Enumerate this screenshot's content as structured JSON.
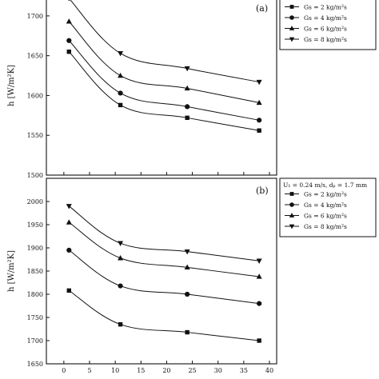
{
  "chart_data": [
    {
      "type": "scatter",
      "panel_label": "(a)",
      "ylabel": "h [W/m²K]",
      "xlim": [
        -2,
        40
      ],
      "ylim": [
        1500,
        1725
      ],
      "yticks": [
        1500,
        1550,
        1600,
        1650,
        1700
      ],
      "legend": {
        "position": "top-right",
        "entries_visible": [
          "Gs = 2 kg/m²s",
          "Gs = 4 kg/m²s",
          "Gs = 6 kg/m²s",
          "Gs = 8 kg/m²s"
        ]
      },
      "series": [
        {
          "name": "Gs = 2 kg/m²s",
          "marker": "square",
          "x": [
            1,
            11,
            24,
            38
          ],
          "y": [
            1655,
            1588,
            1572,
            1556
          ]
        },
        {
          "name": "Gs = 4 kg/m²s",
          "marker": "circle",
          "x": [
            1,
            11,
            24,
            38
          ],
          "y": [
            1669,
            1603,
            1586,
            1569
          ]
        },
        {
          "name": "Gs = 6 kg/m²s",
          "marker": "triangle-up",
          "x": [
            1,
            11,
            24,
            38
          ],
          "y": [
            1693,
            1625,
            1609,
            1591
          ]
        },
        {
          "name": "Gs = 8 kg/m²s",
          "marker": "triangle-down",
          "x": [
            1,
            11,
            24,
            38
          ],
          "y": [
            1722,
            1653,
            1634,
            1617
          ]
        }
      ]
    },
    {
      "type": "scatter",
      "panel_label": "(b)",
      "ylabel": "h [W/m²K]",
      "annotation": "U₁ = 0.24 m/s, dₚ = 1.7 mm",
      "xlim": [
        -2,
        40
      ],
      "xticks": [
        0,
        5,
        10,
        15,
        20,
        25,
        30,
        35,
        40
      ],
      "ylim": [
        1650,
        2050
      ],
      "yticks": [
        1650,
        1700,
        1750,
        1800,
        1850,
        1900,
        1950,
        2000
      ],
      "legend": {
        "position": "top-right",
        "entries_visible": [
          "Gs = 2 kg/m²s",
          "Gs = 4 kg/m²s",
          "Gs = 6 kg/m²s",
          "Gs = 8 kg/m²s"
        ]
      },
      "series": [
        {
          "name": "Gs = 2 kg/m²s",
          "marker": "square",
          "x": [
            1,
            11,
            24,
            38
          ],
          "y": [
            1808,
            1735,
            1718,
            1700
          ]
        },
        {
          "name": "Gs = 4 kg/m²s",
          "marker": "circle",
          "x": [
            1,
            11,
            24,
            38
          ],
          "y": [
            1895,
            1818,
            1800,
            1780
          ]
        },
        {
          "name": "Gs = 6 kg/m²s",
          "marker": "triangle-up",
          "x": [
            1,
            11,
            24,
            38
          ],
          "y": [
            1955,
            1878,
            1858,
            1838
          ]
        },
        {
          "name": "Gs = 8 kg/m²s",
          "marker": "triangle-down",
          "x": [
            1,
            11,
            24,
            38
          ],
          "y": [
            1990,
            1910,
            1892,
            1872
          ]
        }
      ]
    }
  ]
}
